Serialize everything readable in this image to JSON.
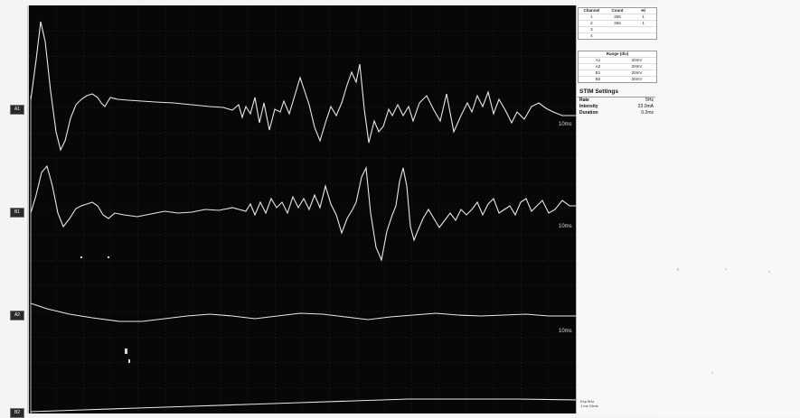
{
  "channels": [
    {
      "tag": "A1",
      "sweep_label": "10ms"
    },
    {
      "tag": "B1",
      "sweep_label": "10ms"
    },
    {
      "tag": "A2",
      "sweep_label": "10ms"
    },
    {
      "tag": "B2",
      "sweep_label": ""
    }
  ],
  "channel_table": {
    "headers": [
      "Channel",
      "Count",
      "Hi"
    ],
    "rows": [
      [
        "1",
        "256",
        "1"
      ],
      [
        "2",
        "256",
        "1"
      ],
      [
        "3",
        "",
        ""
      ],
      [
        "4",
        "",
        ""
      ]
    ]
  },
  "range_table": {
    "header": "Range (div)",
    "rows": [
      [
        "A1",
        "20mV"
      ],
      [
        "A2",
        "20mV"
      ],
      [
        "B1",
        "20mV"
      ],
      [
        "B2",
        "20mV"
      ]
    ]
  },
  "stim_settings": {
    "title": "STIM Settings",
    "rows": [
      {
        "key": "Rate",
        "value": "5Hz"
      },
      {
        "key": "Intensity",
        "value": "23.0mA"
      },
      {
        "key": "Duration",
        "value": "0.2ms"
      }
    ]
  },
  "footer": {
    "line1": "Exp 5Hz",
    "line2": "1 ms 10ms"
  },
  "colors": {
    "background": "#070707",
    "trace": "#e8e8e8",
    "grid": "#3a3a3a"
  }
}
